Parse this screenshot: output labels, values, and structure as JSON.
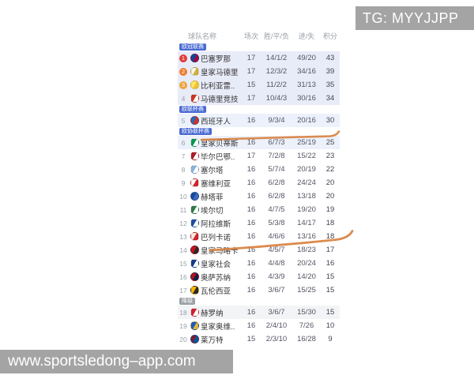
{
  "watermarks": {
    "top_right": "TG: MYYJJPP",
    "bottom_left": "www.sportsledong–app.com",
    "bg_color": "#a4a4a4"
  },
  "colors": {
    "zone_blue": "#4a6bd3",
    "zone_gray": "#9aa0a6",
    "bg_cl": "#e8ebf8",
    "bg_el": "#ecf1fb",
    "bg_rel": "#f3f4f6",
    "bg_default": "#ffffff",
    "highlight": "#d9813f"
  },
  "table": {
    "headers": {
      "team": "球队名称",
      "played": "场次",
      "wdl": "胜/平/负",
      "goals": "进/失",
      "points": "积分"
    },
    "rows": [
      {
        "rank": "1",
        "rank_badge_color": "#e23b3b",
        "zone_label": "欧冠联赛",
        "zone_type": "blue",
        "team": "巴塞罗那",
        "icon": "barcelona-crest",
        "icon_colors": [
          "#004d98",
          "#a50044"
        ],
        "played": "17",
        "wdl": "14/1/2",
        "goals": "49/20",
        "points": "43",
        "bg": "cl"
      },
      {
        "rank": "2",
        "rank_badge_color": "#f07c2e",
        "team": "皇家马德里",
        "icon": "real-madrid-crest",
        "icon_colors": [
          "#f7f4ea",
          "#d4af37"
        ],
        "played": "17",
        "wdl": "12/3/2",
        "goals": "34/16",
        "points": "39",
        "bg": "cl"
      },
      {
        "rank": "3",
        "rank_badge_color": "#efa23b",
        "team": "比利亚雷..",
        "icon": "villarreal-crest",
        "icon_colors": [
          "#ffe667",
          "#f4c431"
        ],
        "played": "15",
        "wdl": "11/2/2",
        "goals": "31/13",
        "points": "35",
        "bg": "cl"
      },
      {
        "rank": "4",
        "team": "马德里竞技",
        "icon": "atletico-madrid-crest",
        "icon_colors": [
          "#cb3524",
          "#ffffff"
        ],
        "played": "17",
        "wdl": "10/4/3",
        "goals": "30/16",
        "points": "34",
        "bg": "cl"
      },
      {
        "rank": "5",
        "zone_label": "欧联杯赛",
        "zone_type": "blue",
        "team": "西班牙人",
        "icon": "espanyol-crest",
        "icon_colors": [
          "#2a6cb5",
          "#d0332c"
        ],
        "played": "16",
        "wdl": "9/3/4",
        "goals": "20/16",
        "points": "30",
        "bg": "el"
      },
      {
        "rank": "6",
        "zone_label": "欧协联杯赛",
        "zone_type": "blue",
        "team": "皇家贝蒂斯",
        "icon": "real-betis-crest",
        "icon_colors": [
          "#0a9955",
          "#ffffff"
        ],
        "played": "16",
        "wdl": "6/7/3",
        "goals": "25/19",
        "points": "25",
        "bg": "el"
      },
      {
        "rank": "7",
        "team": "毕尔巴鄂..",
        "icon": "athletic-bilbao-crest",
        "icon_colors": [
          "#ae1c28",
          "#ffffff"
        ],
        "played": "17",
        "wdl": "7/2/8",
        "goals": "15/22",
        "points": "23",
        "bg": "default"
      },
      {
        "rank": "8",
        "team": "塞尔塔",
        "icon": "celta-vigo-crest",
        "icon_colors": [
          "#8ab4e0",
          "#ffffff"
        ],
        "played": "16",
        "wdl": "5/7/4",
        "goals": "20/19",
        "points": "22",
        "bg": "default"
      },
      {
        "rank": "9",
        "team": "塞维利亚",
        "icon": "sevilla-crest",
        "icon_colors": [
          "#ffffff",
          "#d8232a"
        ],
        "played": "16",
        "wdl": "6/2/8",
        "goals": "24/24",
        "points": "20",
        "bg": "default"
      },
      {
        "rank": "10",
        "team": "赫塔菲",
        "icon": "getafe-crest",
        "icon_colors": [
          "#1b4a9c",
          "#3d6cc0"
        ],
        "played": "16",
        "wdl": "6/2/8",
        "goals": "13/18",
        "points": "20",
        "bg": "default"
      },
      {
        "rank": "11",
        "team": "埃尔切",
        "icon": "elche-crest",
        "icon_colors": [
          "#2e7d46",
          "#ffffff"
        ],
        "played": "16",
        "wdl": "4/7/5",
        "goals": "19/20",
        "points": "19",
        "bg": "default"
      },
      {
        "rank": "12",
        "team": "阿拉维斯",
        "icon": "alaves-crest",
        "icon_colors": [
          "#1d4fa1",
          "#ffffff"
        ],
        "played": "16",
        "wdl": "5/3/8",
        "goals": "14/17",
        "points": "18",
        "bg": "default"
      },
      {
        "rank": "13",
        "team": "巴列卡诺",
        "icon": "rayo-vallecano-crest",
        "icon_colors": [
          "#efe9dc",
          "#d32030"
        ],
        "played": "16",
        "wdl": "4/6/6",
        "goals": "13/16",
        "points": "18",
        "bg": "default"
      },
      {
        "rank": "14",
        "team": "皇家马略卡",
        "icon": "mallorca-crest",
        "icon_colors": [
          "#cf1020",
          "#2b2b2b"
        ],
        "played": "16",
        "wdl": "4/5/7",
        "goals": "18/23",
        "points": "17",
        "bg": "default"
      },
      {
        "rank": "15",
        "team": "皇家社会",
        "icon": "real-sociedad-crest",
        "icon_colors": [
          "#143c8c",
          "#ffffff"
        ],
        "played": "16",
        "wdl": "4/4/8",
        "goals": "20/24",
        "points": "16",
        "bg": "default"
      },
      {
        "rank": "16",
        "team": "奥萨苏纳",
        "icon": "osasuna-crest",
        "icon_colors": [
          "#b5121b",
          "#10204a"
        ],
        "played": "16",
        "wdl": "4/3/9",
        "goals": "14/20",
        "points": "15",
        "bg": "default"
      },
      {
        "rank": "17",
        "team": "瓦伦西亚",
        "icon": "valencia-crest",
        "icon_colors": [
          "#f7b500",
          "#2b2b2b"
        ],
        "played": "16",
        "wdl": "3/6/7",
        "goals": "15/25",
        "points": "15",
        "bg": "default"
      },
      {
        "rank": "18",
        "zone_label": "降级",
        "zone_type": "gray",
        "team": "赫罗纳",
        "icon": "girona-crest",
        "icon_colors": [
          "#d21f2e",
          "#ffffff"
        ],
        "played": "16",
        "wdl": "3/6/7",
        "goals": "15/30",
        "points": "15",
        "bg": "rel"
      },
      {
        "rank": "19",
        "team": "皇家奥维..",
        "icon": "real-oviedo-crest",
        "icon_colors": [
          "#1d5bc4",
          "#e0b63c"
        ],
        "played": "16",
        "wdl": "2/4/10",
        "goals": "7/26",
        "points": "10",
        "bg": "default"
      },
      {
        "rank": "20",
        "team": "莱万特",
        "icon": "levante-crest",
        "icon_colors": [
          "#7a1f3d",
          "#005999"
        ],
        "played": "15",
        "wdl": "2/3/10",
        "goals": "16/28",
        "points": "9",
        "bg": "default"
      }
    ],
    "annotations": [
      {
        "name": "highlight-underline-betis",
        "row": "6"
      },
      {
        "name": "highlight-underline-rayo",
        "row": "13"
      }
    ]
  }
}
